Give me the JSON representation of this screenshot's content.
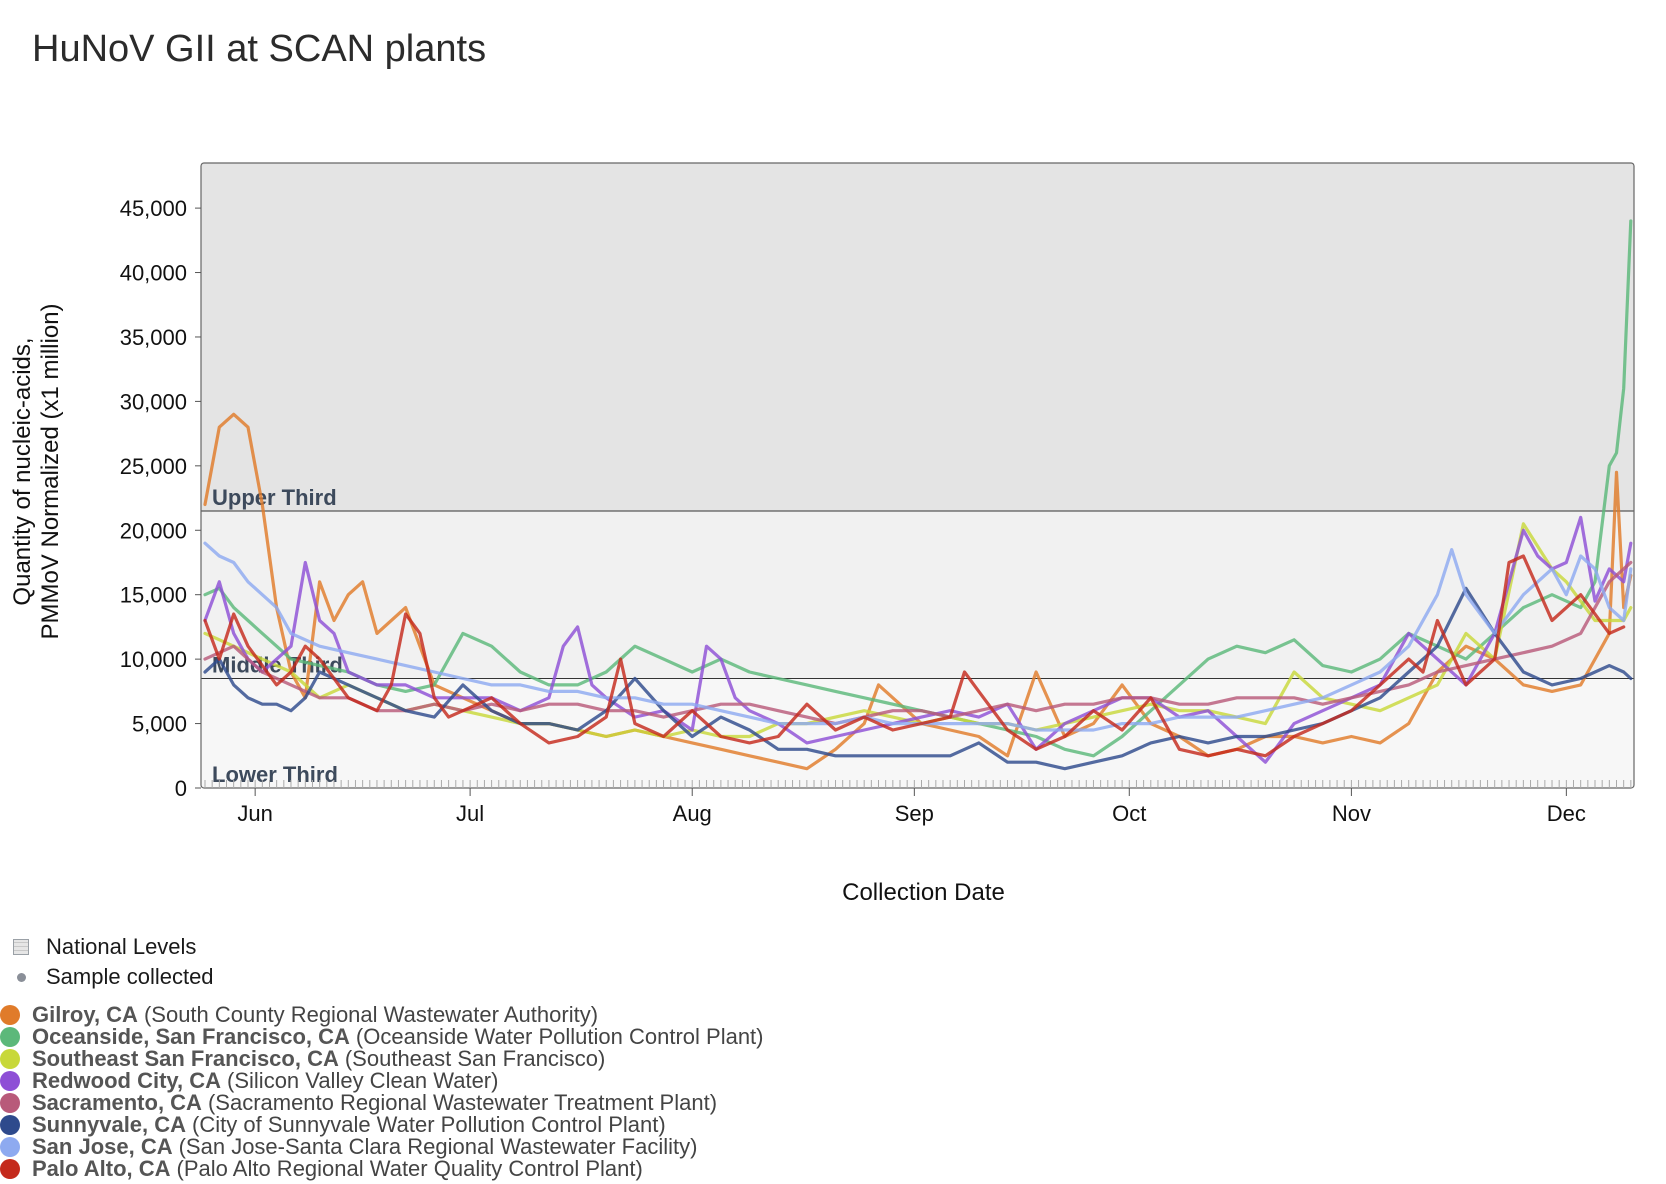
{
  "title": "HuNoV GII at SCAN plants",
  "chart_data": {
    "type": "line",
    "xlabel": "Collection Date",
    "ylabel_line1": "Quantity of nucleic-acids,",
    "ylabel_line2": "PMMoV Normalized (x1 million)",
    "ylim": [
      0,
      48500
    ],
    "yticks": [
      0,
      5000,
      10000,
      15000,
      20000,
      25000,
      30000,
      35000,
      40000,
      45000
    ],
    "ytick_labels": [
      "0",
      "5,000",
      "10,000",
      "15,000",
      "20,000",
      "25,000",
      "30,000",
      "35,000",
      "40,000",
      "45,000"
    ],
    "x_start_day": 0,
    "x_end_day": 199,
    "x_ticks": [
      {
        "label": "Jun",
        "day": 7
      },
      {
        "label": "Jul",
        "day": 37
      },
      {
        "label": "Aug",
        "day": 68
      },
      {
        "label": "Sep",
        "day": 99
      },
      {
        "label": "Oct",
        "day": 129
      },
      {
        "label": "Nov",
        "day": 160
      },
      {
        "label": "Dec",
        "day": 190
      }
    ],
    "bands": [
      {
        "label": "Upper Third",
        "from": 21500,
        "to": 48500,
        "color": "#e4e4e4"
      },
      {
        "label": "Middle Third",
        "from": 8500,
        "to": 21500,
        "color": "#f1f1f1"
      },
      {
        "label": "Lower Third",
        "from": 0,
        "to": 8500,
        "color": "#f7f7f7"
      }
    ],
    "series": [
      {
        "name": "Gilroy, CA",
        "color": "#e07b2a",
        "x": [
          0,
          2,
          4,
          6,
          8,
          10,
          12,
          14,
          16,
          18,
          20,
          22,
          24,
          28,
          32,
          36,
          40,
          44,
          48,
          52,
          56,
          60,
          64,
          68,
          72,
          76,
          80,
          84,
          88,
          92,
          94,
          96,
          100,
          104,
          108,
          112,
          116,
          120,
          124,
          128,
          132,
          136,
          140,
          144,
          148,
          152,
          156,
          160,
          164,
          168,
          172,
          176,
          180,
          184,
          188,
          192,
          196,
          197,
          198,
          199
        ],
        "y": [
          22000,
          28000,
          29000,
          28000,
          22000,
          14000,
          9000,
          7000,
          16000,
          13000,
          15000,
          16000,
          12000,
          14000,
          8000,
          7000,
          6000,
          5000,
          5000,
          4500,
          4000,
          4500,
          4000,
          3500,
          3000,
          2500,
          2000,
          1500,
          3000,
          5000,
          8000,
          7000,
          5000,
          4500,
          4000,
          2500,
          9000,
          4000,
          5000,
          8000,
          5000,
          4000,
          2500,
          3000,
          4000,
          4000,
          3500,
          4000,
          3500,
          5000,
          9000,
          11000,
          10000,
          8000,
          7500,
          8000,
          12000,
          24500,
          14000,
          16500
        ]
      },
      {
        "name": "Oceanside, San Francisco, CA",
        "color": "#5cb87a",
        "x": [
          0,
          2,
          4,
          6,
          8,
          10,
          12,
          16,
          20,
          24,
          28,
          32,
          36,
          40,
          44,
          48,
          52,
          56,
          60,
          64,
          68,
          72,
          76,
          80,
          84,
          88,
          92,
          96,
          100,
          104,
          108,
          112,
          116,
          120,
          124,
          128,
          132,
          136,
          140,
          144,
          148,
          152,
          156,
          160,
          164,
          168,
          172,
          176,
          180,
          184,
          188,
          192,
          194,
          196,
          197,
          198,
          199
        ],
        "y": [
          15000,
          15500,
          14000,
          13000,
          12000,
          11000,
          10000,
          9500,
          9000,
          8000,
          7500,
          8000,
          12000,
          11000,
          9000,
          8000,
          8000,
          9000,
          11000,
          10000,
          9000,
          10000,
          9000,
          8500,
          8000,
          7500,
          7000,
          6500,
          6000,
          5500,
          5000,
          4500,
          4000,
          3000,
          2500,
          4000,
          6000,
          8000,
          10000,
          11000,
          10500,
          11500,
          9500,
          9000,
          10000,
          12000,
          11000,
          10000,
          12000,
          14000,
          15000,
          14000,
          16000,
          25000,
          26000,
          31000,
          44000
        ]
      },
      {
        "name": "Southeast San Francisco, CA",
        "color": "#c8d83a",
        "x": [
          0,
          4,
          8,
          12,
          16,
          20,
          24,
          28,
          32,
          36,
          40,
          44,
          48,
          52,
          56,
          60,
          64,
          68,
          72,
          76,
          80,
          84,
          88,
          92,
          96,
          100,
          104,
          108,
          112,
          116,
          120,
          124,
          128,
          132,
          136,
          140,
          144,
          148,
          152,
          156,
          160,
          164,
          168,
          172,
          176,
          180,
          184,
          188,
          190,
          194,
          198,
          199
        ],
        "y": [
          12000,
          11000,
          10000,
          9000,
          7000,
          8000,
          7000,
          6000,
          6500,
          6000,
          5500,
          5000,
          5000,
          4500,
          4000,
          4500,
          4000,
          4500,
          4000,
          4000,
          5000,
          5000,
          5500,
          6000,
          5500,
          5000,
          5500,
          5000,
          5000,
          4500,
          5000,
          5500,
          6000,
          6500,
          6000,
          6000,
          5500,
          5000,
          9000,
          7000,
          6500,
          6000,
          7000,
          8000,
          12000,
          10000,
          20500,
          17000,
          16000,
          13000,
          13000,
          14000
        ]
      },
      {
        "name": "Redwood City, CA",
        "color": "#8e4fd6",
        "x": [
          0,
          2,
          4,
          6,
          8,
          12,
          14,
          16,
          18,
          20,
          24,
          28,
          32,
          36,
          40,
          44,
          48,
          50,
          52,
          54,
          56,
          60,
          64,
          68,
          70,
          72,
          74,
          76,
          80,
          84,
          88,
          92,
          96,
          100,
          104,
          108,
          112,
          116,
          120,
          124,
          128,
          132,
          136,
          140,
          144,
          148,
          152,
          156,
          160,
          164,
          168,
          172,
          176,
          180,
          184,
          186,
          188,
          190,
          192,
          194,
          196,
          198,
          199
        ],
        "y": [
          13000,
          16000,
          12000,
          10000,
          9000,
          11000,
          17500,
          13000,
          12000,
          9000,
          8000,
          8000,
          7000,
          7000,
          7000,
          6000,
          7000,
          11000,
          12500,
          8000,
          7000,
          5500,
          6000,
          4500,
          11000,
          10000,
          7000,
          6000,
          5000,
          3500,
          4000,
          4500,
          5000,
          5500,
          6000,
          5500,
          6500,
          3000,
          5000,
          6000,
          7000,
          7000,
          5500,
          6000,
          4000,
          2000,
          5000,
          6000,
          7000,
          8000,
          12000,
          10000,
          8000,
          12000,
          20000,
          18000,
          17000,
          17500,
          21000,
          14500,
          17000,
          16000,
          19000
        ]
      },
      {
        "name": "Sacramento, CA",
        "color": "#b85a7a",
        "x": [
          0,
          4,
          8,
          12,
          16,
          20,
          24,
          28,
          32,
          36,
          40,
          44,
          48,
          52,
          56,
          60,
          64,
          68,
          72,
          76,
          80,
          84,
          88,
          92,
          96,
          100,
          104,
          108,
          112,
          116,
          120,
          124,
          128,
          132,
          136,
          140,
          144,
          148,
          152,
          156,
          160,
          164,
          168,
          172,
          176,
          180,
          184,
          188,
          192,
          196,
          199
        ],
        "y": [
          10000,
          11000,
          9000,
          8000,
          7000,
          7000,
          6000,
          6000,
          6500,
          6000,
          6500,
          6000,
          6500,
          6500,
          6000,
          6000,
          5500,
          6000,
          6500,
          6500,
          6000,
          5500,
          5000,
          5500,
          6000,
          6000,
          5500,
          6000,
          6500,
          6000,
          6500,
          6500,
          7000,
          7000,
          6500,
          6500,
          7000,
          7000,
          7000,
          6500,
          7000,
          7500,
          8000,
          9000,
          9500,
          10000,
          10500,
          11000,
          12000,
          16000,
          17500
        ]
      },
      {
        "name": "Sunnyvale, CA",
        "color": "#2e4a8c",
        "x": [
          0,
          2,
          4,
          6,
          8,
          10,
          12,
          14,
          16,
          20,
          24,
          28,
          32,
          36,
          40,
          44,
          48,
          52,
          56,
          60,
          64,
          68,
          72,
          76,
          80,
          84,
          88,
          92,
          96,
          100,
          104,
          108,
          112,
          116,
          120,
          124,
          128,
          132,
          136,
          140,
          144,
          148,
          152,
          156,
          160,
          164,
          168,
          172,
          176,
          180,
          184,
          188,
          192,
          196,
          198,
          199
        ],
        "y": [
          9000,
          10000,
          8000,
          7000,
          6500,
          6500,
          6000,
          7000,
          9000,
          8000,
          7000,
          6000,
          5500,
          8000,
          6000,
          5000,
          5000,
          4500,
          6000,
          8500,
          6000,
          4000,
          5500,
          4500,
          3000,
          3000,
          2500,
          2500,
          2500,
          2500,
          2500,
          3500,
          2000,
          2000,
          1500,
          2000,
          2500,
          3500,
          4000,
          3500,
          4000,
          4000,
          4500,
          5000,
          6000,
          7000,
          9000,
          11000,
          15500,
          12000,
          9000,
          8000,
          8500,
          9500,
          9000,
          8500
        ]
      },
      {
        "name": "San Jose, CA",
        "color": "#8eaaf0",
        "x": [
          0,
          2,
          4,
          6,
          8,
          10,
          12,
          16,
          20,
          24,
          28,
          32,
          36,
          40,
          44,
          48,
          52,
          56,
          60,
          64,
          68,
          72,
          76,
          80,
          84,
          88,
          92,
          96,
          100,
          104,
          108,
          112,
          116,
          120,
          124,
          128,
          132,
          136,
          140,
          144,
          148,
          152,
          156,
          160,
          164,
          168,
          172,
          174,
          176,
          180,
          184,
          188,
          190,
          192,
          194,
          196,
          198,
          199
        ],
        "y": [
          19000,
          18000,
          17500,
          16000,
          15000,
          14000,
          12000,
          11000,
          10500,
          10000,
          9500,
          9000,
          8500,
          8000,
          8000,
          7500,
          7500,
          7000,
          7000,
          6500,
          6500,
          6000,
          5500,
          5000,
          5000,
          5000,
          5500,
          5000,
          5000,
          5000,
          5000,
          5000,
          4500,
          4500,
          4500,
          5000,
          5000,
          5500,
          5500,
          5500,
          6000,
          6500,
          7000,
          8000,
          9000,
          11000,
          15000,
          18500,
          15000,
          12000,
          15000,
          17000,
          15000,
          18000,
          17000,
          14000,
          13000,
          17000
        ]
      },
      {
        "name": "Palo Alto, CA",
        "color": "#c42a1c",
        "x": [
          0,
          2,
          4,
          6,
          8,
          10,
          12,
          14,
          16,
          20,
          24,
          26,
          28,
          30,
          32,
          34,
          36,
          40,
          44,
          48,
          52,
          56,
          58,
          60,
          64,
          68,
          72,
          76,
          80,
          84,
          88,
          92,
          96,
          100,
          104,
          106,
          108,
          112,
          116,
          120,
          124,
          128,
          132,
          136,
          140,
          144,
          148,
          152,
          156,
          160,
          164,
          168,
          170,
          172,
          176,
          180,
          182,
          184,
          188,
          192,
          196,
          198
        ],
        "y": [
          13000,
          10000,
          13500,
          11000,
          9500,
          8000,
          9000,
          11000,
          10000,
          7000,
          6000,
          8000,
          13500,
          12000,
          7000,
          5500,
          6000,
          7000,
          5000,
          3500,
          4000,
          5500,
          10000,
          5000,
          4000,
          6000,
          4000,
          3500,
          4000,
          6500,
          4500,
          5500,
          4500,
          5000,
          5500,
          9000,
          7500,
          4500,
          3000,
          4000,
          6000,
          4500,
          7000,
          3000,
          2500,
          3000,
          2500,
          4000,
          5000,
          6000,
          8000,
          10000,
          9000,
          13000,
          8000,
          10000,
          17500,
          18000,
          13000,
          15000,
          12000,
          12500
        ]
      }
    ]
  },
  "legend": {
    "national_levels": "National Levels",
    "sample_collected": "Sample collected"
  },
  "sites": [
    {
      "name": "Gilroy, CA",
      "desc": "(South County Regional Wastewater Authority)",
      "color": "#e07b2a"
    },
    {
      "name": "Oceanside, San Francisco, CA",
      "desc": "(Oceanside Water Pollution Control Plant)",
      "color": "#5cb87a"
    },
    {
      "name": "Southeast San Francisco, CA",
      "desc": "(Southeast San Francisco)",
      "color": "#c8d83a"
    },
    {
      "name": "Redwood City, CA",
      "desc": "(Silicon Valley Clean Water)",
      "color": "#8e4fd6"
    },
    {
      "name": "Sacramento, CA",
      "desc": "(Sacramento Regional Wastewater Treatment Plant)",
      "color": "#b85a7a"
    },
    {
      "name": "Sunnyvale, CA",
      "desc": "(City of Sunnyvale Water Pollution Control Plant)",
      "color": "#2e4a8c"
    },
    {
      "name": "San Jose, CA",
      "desc": "(San Jose-Santa Clara Regional Wastewater Facility)",
      "color": "#8eaaf0"
    },
    {
      "name": "Palo Alto, CA",
      "desc": "(Palo Alto Regional Water Quality Control Plant)",
      "color": "#c42a1c"
    }
  ]
}
